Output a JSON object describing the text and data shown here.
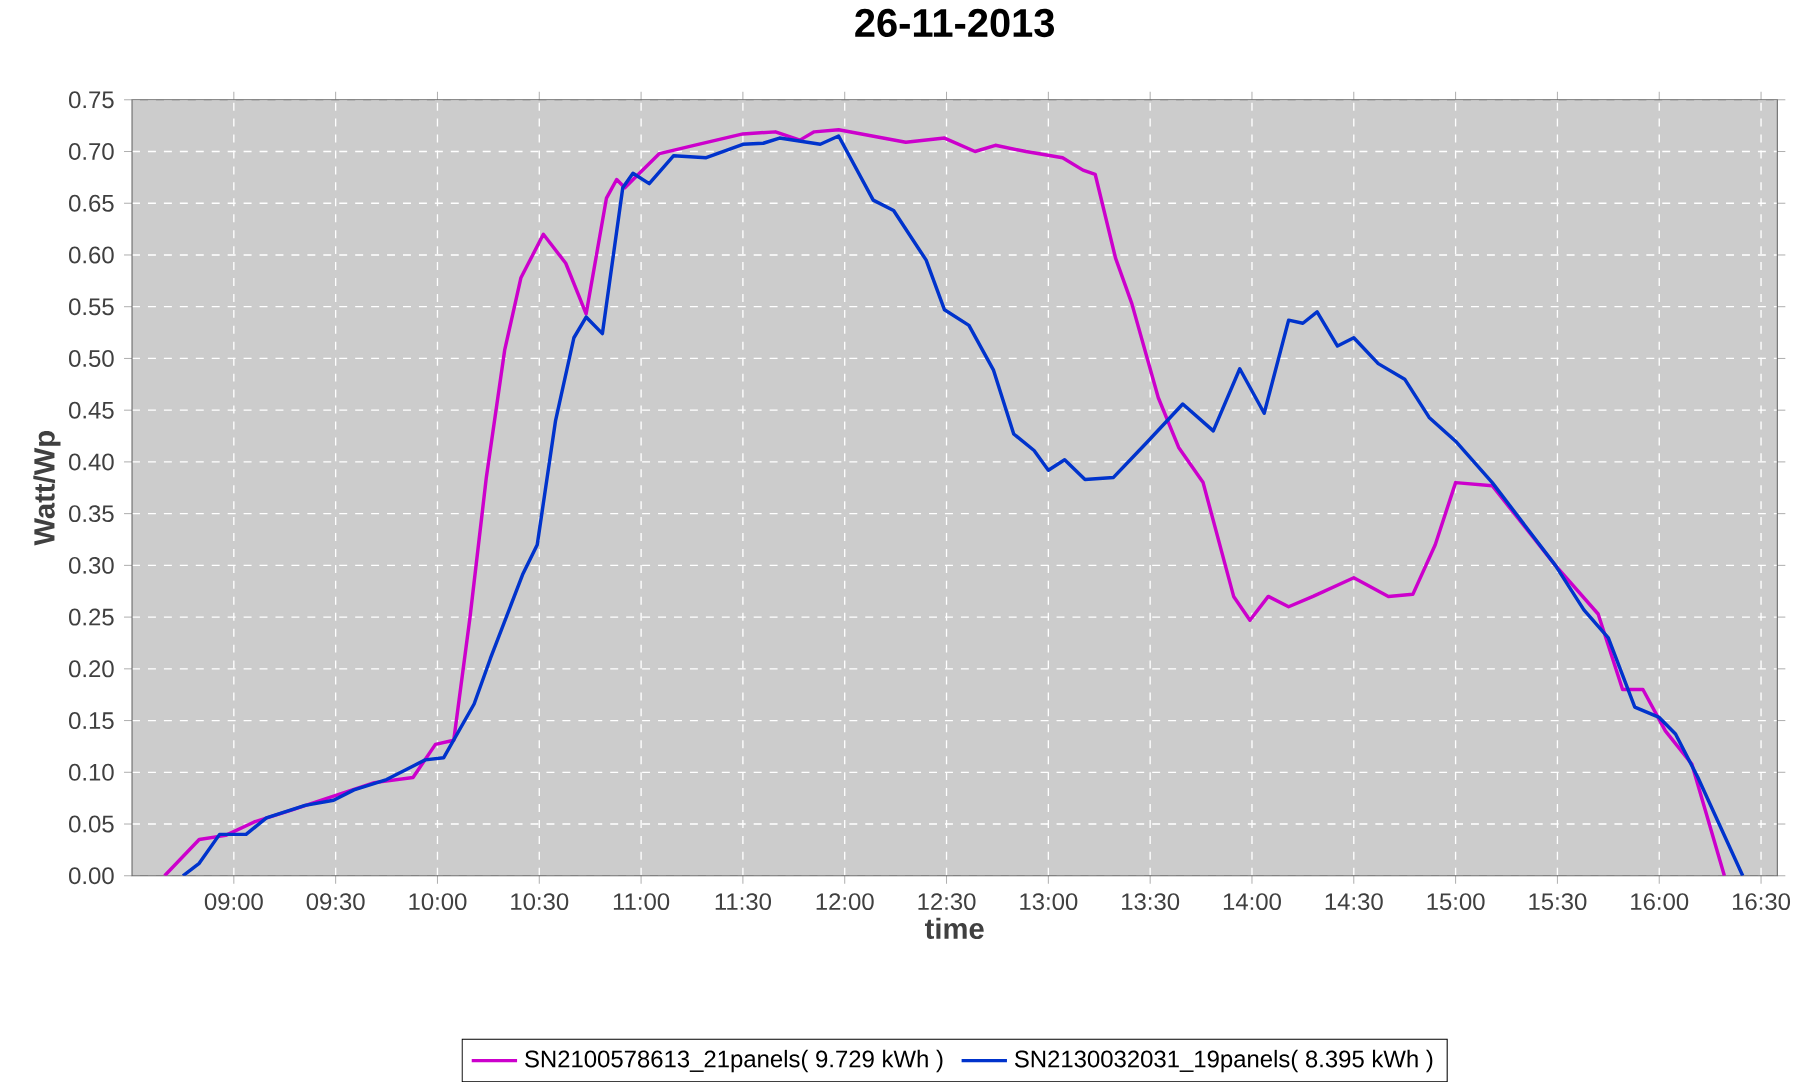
{
  "chart_data": {
    "type": "line",
    "title": "26-11-2013",
    "xlabel": "time",
    "ylabel": "Watt/Wp",
    "xlim": [
      8.5,
      16.58
    ],
    "ylim": [
      0,
      0.75
    ],
    "xticks": [
      {
        "value": 9,
        "label": "09:00"
      },
      {
        "value": 9.5,
        "label": "09:30"
      },
      {
        "value": 10,
        "label": "10:00"
      },
      {
        "value": 10.5,
        "label": "10:30"
      },
      {
        "value": 11,
        "label": "11:00"
      },
      {
        "value": 11.5,
        "label": "11:30"
      },
      {
        "value": 12,
        "label": "12:00"
      },
      {
        "value": 12.5,
        "label": "12:30"
      },
      {
        "value": 13,
        "label": "13:00"
      },
      {
        "value": 13.5,
        "label": "13:30"
      },
      {
        "value": 14,
        "label": "14:00"
      },
      {
        "value": 14.5,
        "label": "14:30"
      },
      {
        "value": 15,
        "label": "15:00"
      },
      {
        "value": 15.5,
        "label": "15:30"
      },
      {
        "value": 16,
        "label": "16:00"
      },
      {
        "value": 16.5,
        "label": "16:30"
      }
    ],
    "yticks": [
      {
        "value": 0,
        "label": "0.00"
      },
      {
        "value": 0.05,
        "label": "0.05"
      },
      {
        "value": 0.1,
        "label": "0.10"
      },
      {
        "value": 0.15,
        "label": "0.15"
      },
      {
        "value": 0.2,
        "label": "0.20"
      },
      {
        "value": 0.25,
        "label": "0.25"
      },
      {
        "value": 0.3,
        "label": "0.30"
      },
      {
        "value": 0.35,
        "label": "0.35"
      },
      {
        "value": 0.4,
        "label": "0.40"
      },
      {
        "value": 0.45,
        "label": "0.45"
      },
      {
        "value": 0.5,
        "label": "0.50"
      },
      {
        "value": 0.55,
        "label": "0.55"
      },
      {
        "value": 0.6,
        "label": "0.60"
      },
      {
        "value": 0.65,
        "label": "0.65"
      },
      {
        "value": 0.7,
        "label": "0.70"
      },
      {
        "value": 0.75,
        "label": "0.75"
      }
    ],
    "grid": true,
    "legend": "bottom",
    "marker": "none",
    "line_style": "solid",
    "series": [
      {
        "name": "SN2100578613_21panels( 9.729 kWh )",
        "color": "#cc00cc",
        "x": [
          8.66,
          8.83,
          8.96,
          9.1,
          9.29,
          9.49,
          9.69,
          9.88,
          9.99,
          10.08,
          10.16,
          10.24,
          10.33,
          10.41,
          10.52,
          10.63,
          10.73,
          10.83,
          10.88,
          10.92,
          11.09,
          11.26,
          11.5,
          11.66,
          11.78,
          11.85,
          11.97,
          12.3,
          12.49,
          12.64,
          12.74,
          12.89,
          13.07,
          13.17,
          13.23,
          13.33,
          13.41,
          13.54,
          13.64,
          13.76,
          13.91,
          13.99,
          14.08,
          14.18,
          14.3,
          14.5,
          14.67,
          14.79,
          14.9,
          15.0,
          15.18,
          15.49,
          15.7,
          15.82,
          15.92,
          16.03,
          16.16,
          16.32
        ],
        "values": [
          0,
          0.035,
          0.039,
          0.052,
          0.064,
          0.077,
          0.09,
          0.095,
          0.127,
          0.131,
          0.25,
          0.385,
          0.508,
          0.578,
          0.62,
          0.592,
          0.543,
          0.655,
          0.673,
          0.665,
          0.698,
          0.706,
          0.717,
          0.719,
          0.711,
          0.719,
          0.721,
          0.709,
          0.713,
          0.7,
          0.706,
          0.7,
          0.694,
          0.682,
          0.678,
          0.597,
          0.553,
          0.462,
          0.414,
          0.38,
          0.27,
          0.247,
          0.27,
          0.26,
          0.27,
          0.288,
          0.27,
          0.272,
          0.32,
          0.38,
          0.377,
          0.3,
          0.253,
          0.18,
          0.18,
          0.14,
          0.108,
          0
        ]
      },
      {
        "name": "SN2130032031_19panels( 8.395 kWh )",
        "color": "#0033cc",
        "x": [
          8.75,
          8.83,
          8.93,
          9.06,
          9.16,
          9.35,
          9.49,
          9.59,
          9.75,
          9.84,
          9.94,
          10.03,
          10.18,
          10.26,
          10.42,
          10.49,
          10.58,
          10.67,
          10.73,
          10.81,
          10.91,
          10.96,
          11.04,
          11.16,
          11.32,
          11.5,
          11.6,
          11.68,
          11.88,
          11.97,
          12.14,
          12.24,
          12.4,
          12.49,
          12.61,
          12.73,
          12.83,
          12.93,
          13.0,
          13.08,
          13.18,
          13.32,
          13.48,
          13.66,
          13.81,
          13.94,
          14.06,
          14.18,
          14.25,
          14.32,
          14.42,
          14.5,
          14.62,
          14.75,
          14.87,
          15.0,
          15.18,
          15.49,
          15.63,
          15.75,
          15.88,
          16.0,
          16.08,
          16.19,
          16.41
        ],
        "values": [
          0,
          0.012,
          0.04,
          0.04,
          0.056,
          0.068,
          0.073,
          0.083,
          0.093,
          0.102,
          0.112,
          0.114,
          0.166,
          0.21,
          0.292,
          0.32,
          0.44,
          0.52,
          0.54,
          0.524,
          0.665,
          0.679,
          0.669,
          0.696,
          0.694,
          0.707,
          0.708,
          0.713,
          0.707,
          0.715,
          0.653,
          0.643,
          0.595,
          0.547,
          0.532,
          0.489,
          0.427,
          0.411,
          0.392,
          0.402,
          0.383,
          0.385,
          0.418,
          0.456,
          0.43,
          0.49,
          0.447,
          0.537,
          0.534,
          0.545,
          0.512,
          0.52,
          0.495,
          0.48,
          0.443,
          0.42,
          0.38,
          0.3,
          0.257,
          0.23,
          0.163,
          0.153,
          0.137,
          0.095,
          0
        ]
      }
    ]
  }
}
